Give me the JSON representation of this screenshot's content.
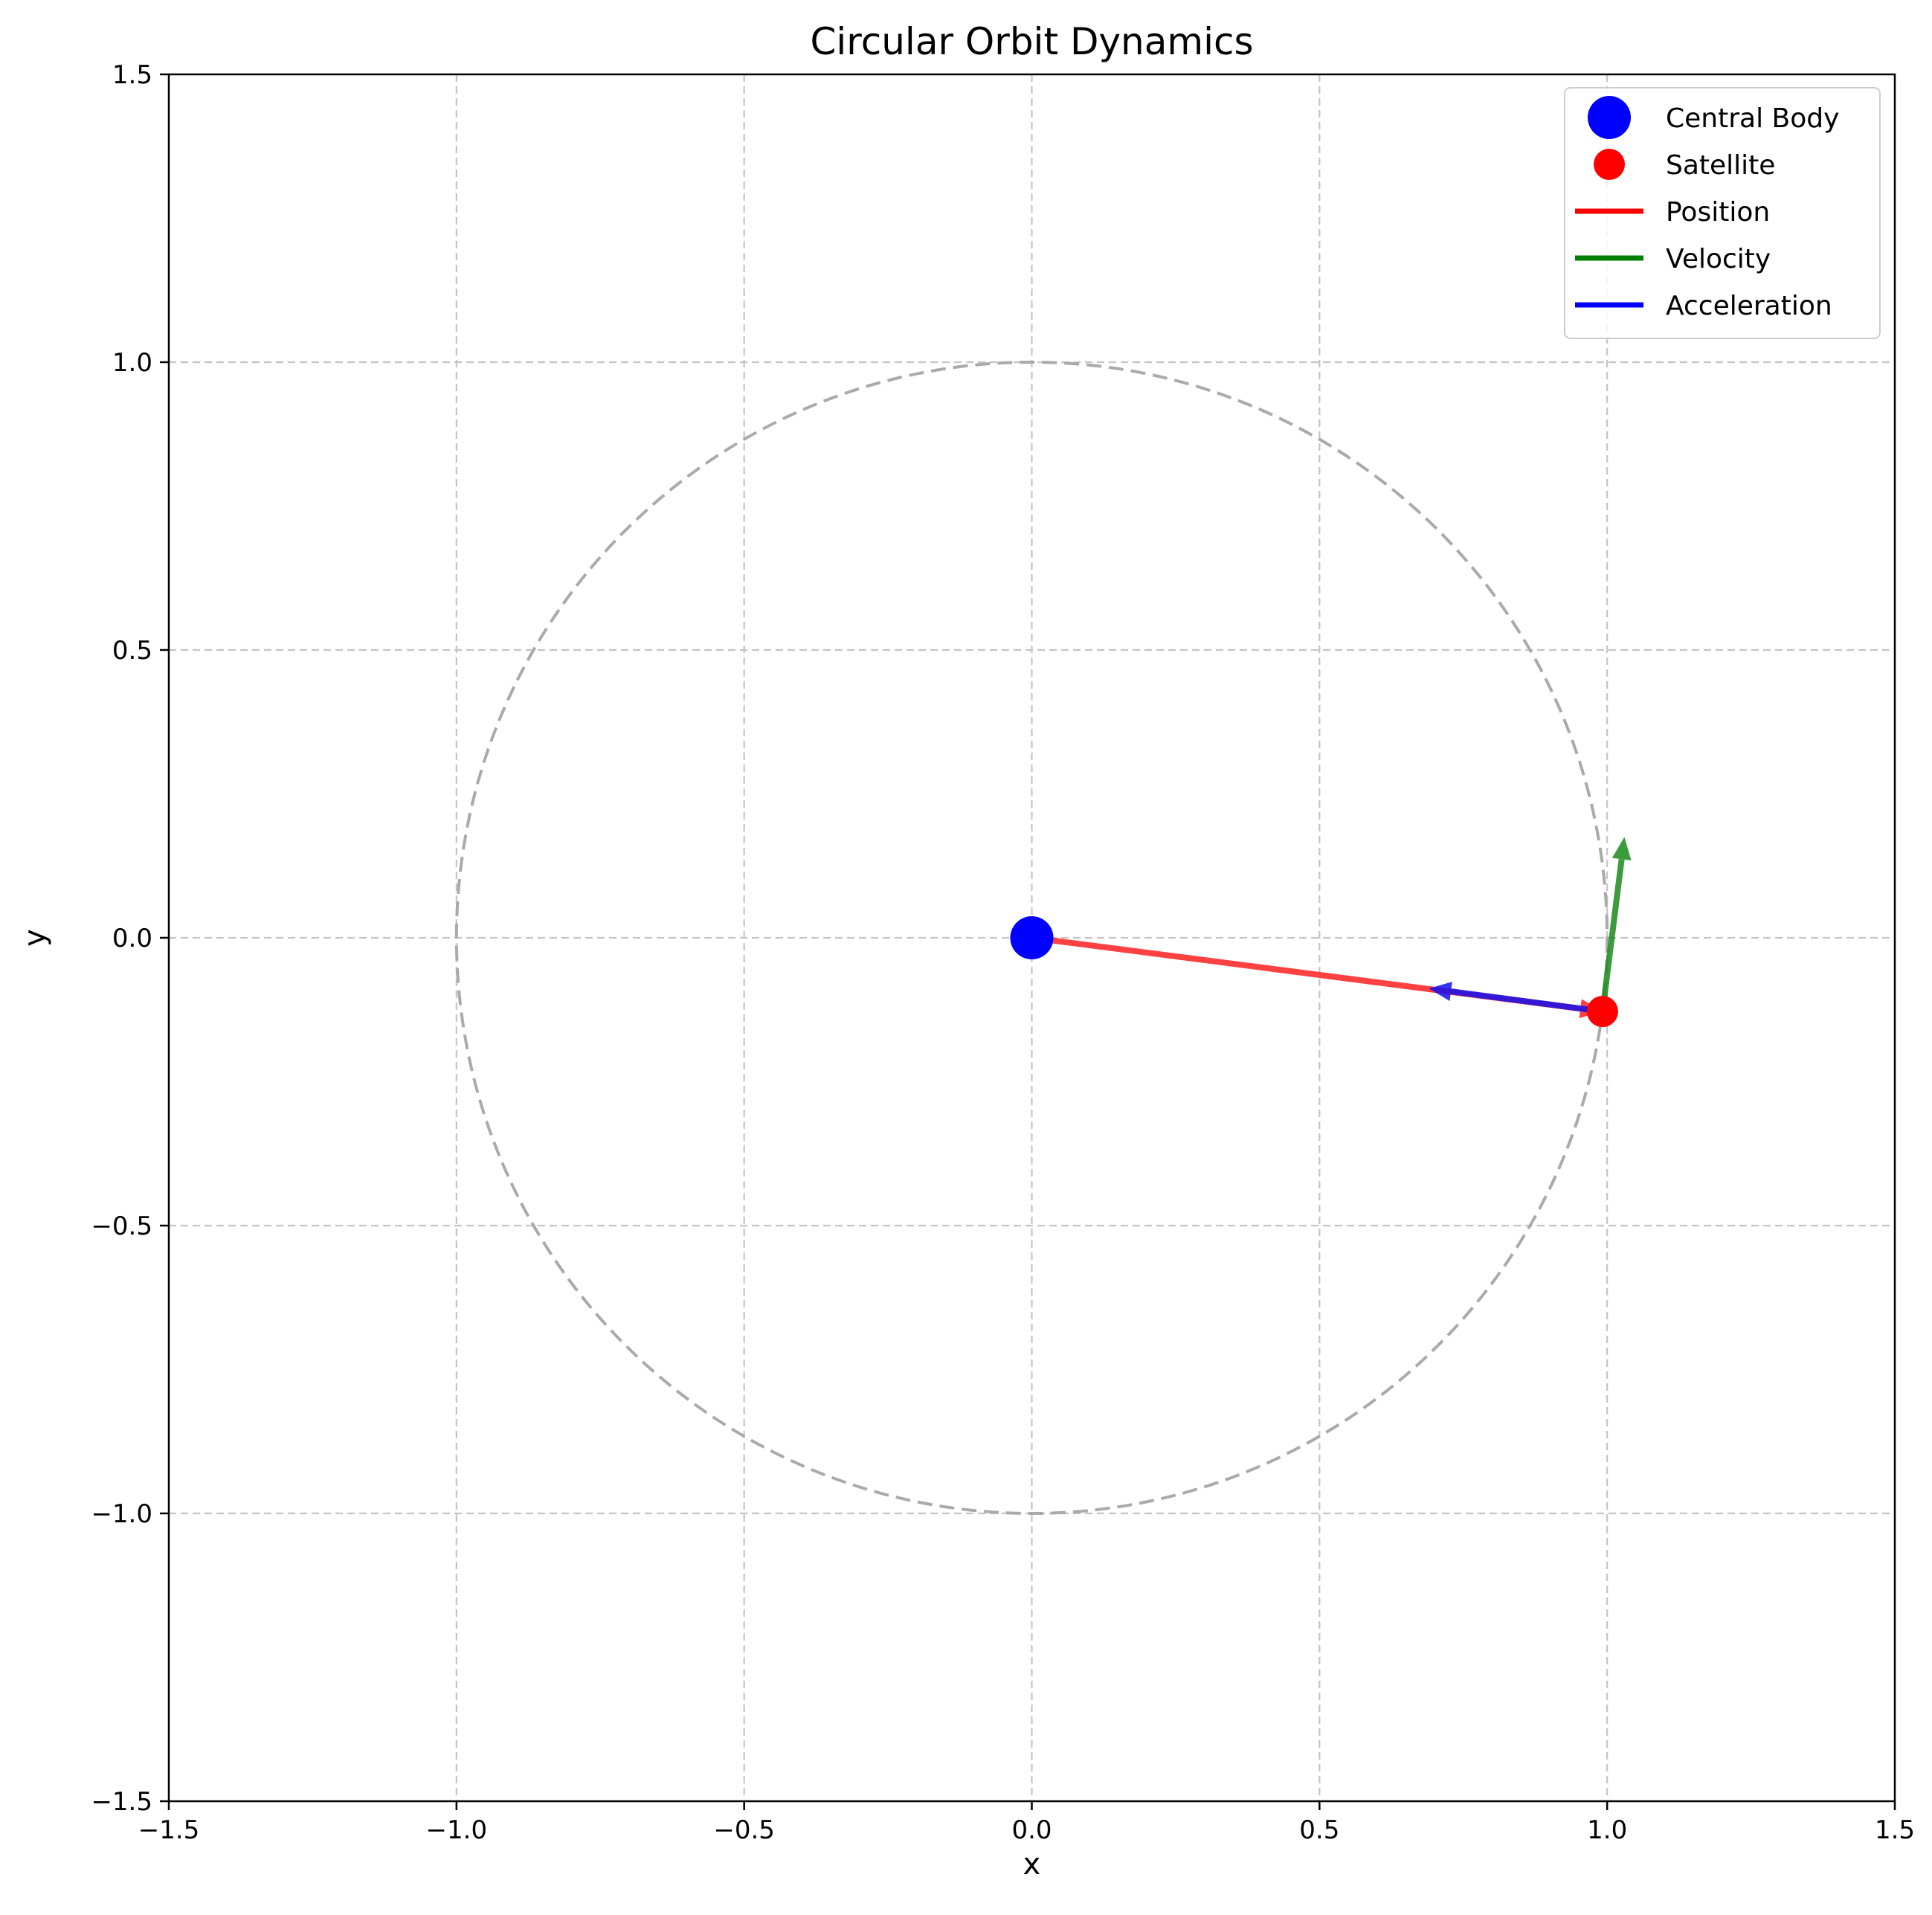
{
  "chart_data": {
    "type": "scatter",
    "title": "Circular Orbit Dynamics",
    "xlabel": "x",
    "ylabel": "y",
    "xlim": [
      -1.5,
      1.5
    ],
    "ylim": [
      -1.5,
      1.5
    ],
    "xticks": [
      -1.5,
      -1.0,
      -0.5,
      0.0,
      0.5,
      1.0,
      1.5
    ],
    "yticks": [
      -1.5,
      -1.0,
      -0.5,
      0.0,
      0.5,
      1.0,
      1.5
    ],
    "xtick_labels": [
      "−1.5",
      "−1.0",
      "−0.5",
      "0.0",
      "0.5",
      "1.0",
      "1.5"
    ],
    "ytick_labels": [
      "−1.5",
      "−1.0",
      "−0.5",
      "0.0",
      "0.5",
      "1.0",
      "1.5"
    ],
    "grid": true,
    "legend_position": "top-right",
    "orbit": {
      "center": [
        0,
        0
      ],
      "radius": 1.0,
      "style": "dashed",
      "color": "#aaaaaa"
    },
    "points": [
      {
        "name": "Central Body",
        "x": 0.0,
        "y": 0.0,
        "color": "#0000ff"
      },
      {
        "name": "Satellite",
        "x": 0.992,
        "y": -0.128,
        "color": "#ff0000"
      }
    ],
    "vectors": [
      {
        "name": "Position",
        "from": [
          0.0,
          0.0
        ],
        "to": [
          0.992,
          -0.128
        ],
        "color": "#ff2020"
      },
      {
        "name": "Velocity",
        "from": [
          0.992,
          -0.128
        ],
        "to": [
          1.03,
          0.175
        ],
        "color": "#1a8a1a"
      },
      {
        "name": "Acceleration",
        "from": [
          0.992,
          -0.128
        ],
        "to": [
          0.69,
          -0.088
        ],
        "color": "#1010ee"
      }
    ],
    "legend": [
      {
        "label": "Central Body",
        "kind": "marker",
        "color": "#0000ff"
      },
      {
        "label": "Satellite",
        "kind": "marker",
        "color": "#ff0000"
      },
      {
        "label": "Position",
        "kind": "line",
        "color": "#ff0000"
      },
      {
        "label": "Velocity",
        "kind": "line",
        "color": "#008000"
      },
      {
        "label": "Acceleration",
        "kind": "line",
        "color": "#0000ff"
      }
    ]
  }
}
